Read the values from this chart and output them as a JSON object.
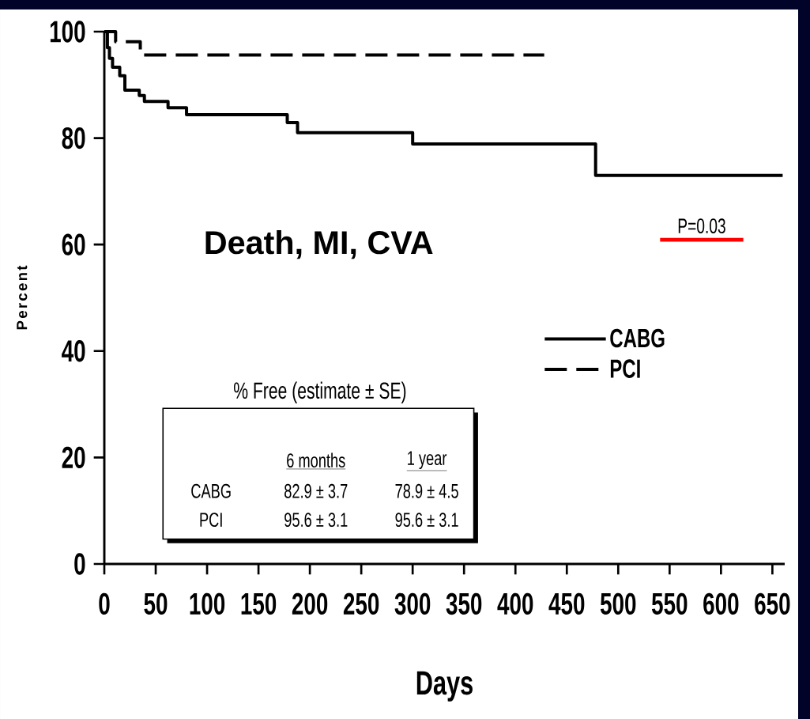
{
  "chart_data": {
    "type": "step",
    "xlabel": "Days",
    "ylabel": "Percent",
    "x": [
      0,
      3,
      5,
      8,
      15,
      20,
      34,
      39,
      62,
      80,
      178,
      188,
      300,
      478,
      660
    ],
    "series": [
      {
        "name": "CABG",
        "color": "#000000",
        "line_style": "solid",
        "values": [
          100,
          97,
          95,
          93.3,
          91.7,
          89.0,
          88.0,
          86.9,
          85.7,
          84.4,
          82.9,
          81.0,
          78.9,
          73.0,
          73.0
        ]
      },
      {
        "name": "PCI",
        "color": "#000000",
        "line_style": "dashed",
        "x": [
          0,
          11,
          35,
          428
        ],
        "values": [
          100,
          98.1,
          95.6,
          95.6
        ]
      }
    ],
    "xlim": [
      0,
      662
    ],
    "ylim": [
      0,
      100
    ],
    "xticks": [
      0,
      50,
      100,
      150,
      200,
      250,
      300,
      350,
      400,
      450,
      500,
      550,
      600,
      650
    ],
    "yticks": [
      0,
      20,
      40,
      60,
      80,
      100
    ],
    "grid": false,
    "legend": "right",
    "marker": "none",
    "annotations": [
      "Death, MI, CVA",
      "P=0.03",
      "% Free (estimate ± SE)",
      "6 months",
      "1 year",
      "CABG",
      "82.9 ± 3.7",
      "78.9 ± 4.5",
      "PCI",
      "95.6 ± 3.1",
      "95.6 ± 3.1"
    ]
  }
}
